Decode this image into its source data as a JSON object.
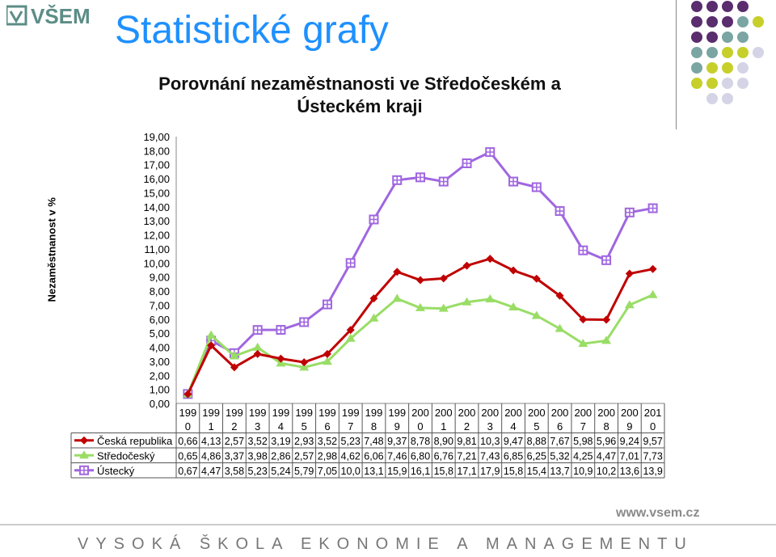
{
  "header": {
    "logo_text": "VŠEM",
    "slide_title": "Statistické grafy"
  },
  "footer": {
    "url": "www.vsem.cz",
    "school": "VYSOKÁ ŠKOLA EKONOMIE A MANAGEMENTU"
  },
  "colors": {
    "title_blue": "#1e90ff",
    "cr_red": "#c00000",
    "stc_green": "#99dd66",
    "ust_purple": "#a066e0",
    "dot_purple": "#5a2d6e",
    "dot_teal": "#7aa5a3",
    "dot_lime": "#c7cf2a",
    "dot_lilac": "#d4d4e6"
  },
  "chart_data": {
    "type": "line",
    "title": "Porovnání nezaměstnanosti ve Středočeském a Ústeckém kraji",
    "ylabel": "Nezaměstnanost v %",
    "xlabel": "",
    "ylim": [
      0,
      19
    ],
    "y_ticks": [
      "0,00",
      "1,00",
      "2,00",
      "3,00",
      "4,00",
      "5,00",
      "6,00",
      "7,00",
      "8,00",
      "9,00",
      "10,00",
      "11,00",
      "12,00",
      "13,00",
      "14,00",
      "15,00",
      "16,00",
      "17,00",
      "18,00",
      "19,00"
    ],
    "categories": [
      [
        "199",
        "0"
      ],
      [
        "199",
        "1"
      ],
      [
        "199",
        "2"
      ],
      [
        "199",
        "3"
      ],
      [
        "199",
        "4"
      ],
      [
        "199",
        "5"
      ],
      [
        "199",
        "6"
      ],
      [
        "199",
        "7"
      ],
      [
        "199",
        "8"
      ],
      [
        "199",
        "9"
      ],
      [
        "200",
        "0"
      ],
      [
        "200",
        "1"
      ],
      [
        "200",
        "2"
      ],
      [
        "200",
        "3"
      ],
      [
        "200",
        "4"
      ],
      [
        "200",
        "5"
      ],
      [
        "200",
        "6"
      ],
      [
        "200",
        "7"
      ],
      [
        "200",
        "8"
      ],
      [
        "200",
        "9"
      ],
      [
        "201",
        "0"
      ]
    ],
    "grid": false,
    "legend": "data table",
    "series": [
      {
        "name": "Česká republika",
        "color": "#c00000",
        "marker": "diamond",
        "values": [
          0.66,
          4.13,
          2.57,
          3.52,
          3.19,
          2.93,
          3.52,
          5.23,
          7.48,
          9.37,
          8.78,
          8.9,
          9.81,
          10.3,
          9.47,
          8.88,
          7.67,
          5.98,
          5.96,
          9.24,
          9.57
        ],
        "labels": [
          "0,66",
          "4,13",
          "2,57",
          "3,52",
          "3,19",
          "2,93",
          "3,52",
          "5,23",
          "7,48",
          "9,37",
          "8,78",
          "8,90",
          "9,81",
          "10,3",
          "9,47",
          "8,88",
          "7,67",
          "5,98",
          "5,96",
          "9,24",
          "9,57"
        ]
      },
      {
        "name": "Středočeský",
        "color": "#99dd66",
        "marker": "triangle",
        "values": [
          0.65,
          4.86,
          3.37,
          3.98,
          2.86,
          2.57,
          2.98,
          4.62,
          6.06,
          7.46,
          6.8,
          6.76,
          7.21,
          7.43,
          6.85,
          6.25,
          5.32,
          4.25,
          4.47,
          7.01,
          7.73
        ],
        "labels": [
          "0,65",
          "4,86",
          "3,37",
          "3,98",
          "2,86",
          "2,57",
          "2,98",
          "4,62",
          "6,06",
          "7,46",
          "6,80",
          "6,76",
          "7,21",
          "7,43",
          "6,85",
          "6,25",
          "5,32",
          "4,25",
          "4,47",
          "7,01",
          "7,73"
        ]
      },
      {
        "name": "Ústecký",
        "color": "#a066e0",
        "marker": "square",
        "values": [
          0.67,
          4.47,
          3.58,
          5.23,
          5.24,
          5.79,
          7.05,
          10.0,
          13.1,
          15.9,
          16.1,
          15.8,
          17.1,
          17.9,
          15.8,
          15.4,
          13.7,
          10.9,
          10.2,
          13.6,
          13.9
        ],
        "labels": [
          "0,67",
          "4,47",
          "3,58",
          "5,23",
          "5,24",
          "5,79",
          "7,05",
          "10,0",
          "13,1",
          "15,9",
          "16,1",
          "15,8",
          "17,1",
          "17,9",
          "15,8",
          "15,4",
          "13,7",
          "10,9",
          "10,2",
          "13,6",
          "13,9"
        ]
      }
    ]
  }
}
